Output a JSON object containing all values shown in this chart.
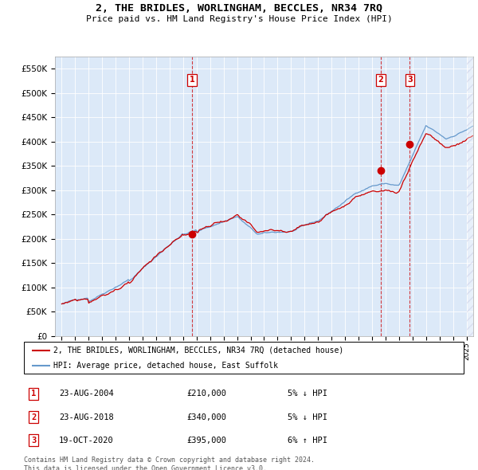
{
  "title": "2, THE BRIDLES, WORLINGHAM, BECCLES, NR34 7RQ",
  "subtitle": "Price paid vs. HM Land Registry's House Price Index (HPI)",
  "legend_label_red": "2, THE BRIDLES, WORLINGHAM, BECCLES, NR34 7RQ (detached house)",
  "legend_label_blue": "HPI: Average price, detached house, East Suffolk",
  "sales": [
    {
      "num": 1,
      "date": "23-AUG-2004",
      "price": 210000,
      "pct": "5%",
      "dir": "↓"
    },
    {
      "num": 2,
      "date": "23-AUG-2018",
      "price": 340000,
      "pct": "5%",
      "dir": "↓"
    },
    {
      "num": 3,
      "date": "19-OCT-2020",
      "price": 395000,
      "pct": "6%",
      "dir": "↑"
    }
  ],
  "sale_years": [
    2004.65,
    2018.65,
    2020.8
  ],
  "sale_prices": [
    210000,
    340000,
    395000
  ],
  "ylim": [
    0,
    575000
  ],
  "xlim_start": 1994.5,
  "xlim_end": 2025.5,
  "yticks": [
    0,
    50000,
    100000,
    150000,
    200000,
    250000,
    300000,
    350000,
    400000,
    450000,
    500000,
    550000
  ],
  "ytick_labels": [
    "£0",
    "£50K",
    "£100K",
    "£150K",
    "£200K",
    "£250K",
    "£300K",
    "£350K",
    "£400K",
    "£450K",
    "£500K",
    "£550K"
  ],
  "bg_color": "#dce9f8",
  "red_color": "#cc0000",
  "blue_color": "#6699cc",
  "footer": "Contains HM Land Registry data © Crown copyright and database right 2024.\nThis data is licensed under the Open Government Licence v3.0."
}
